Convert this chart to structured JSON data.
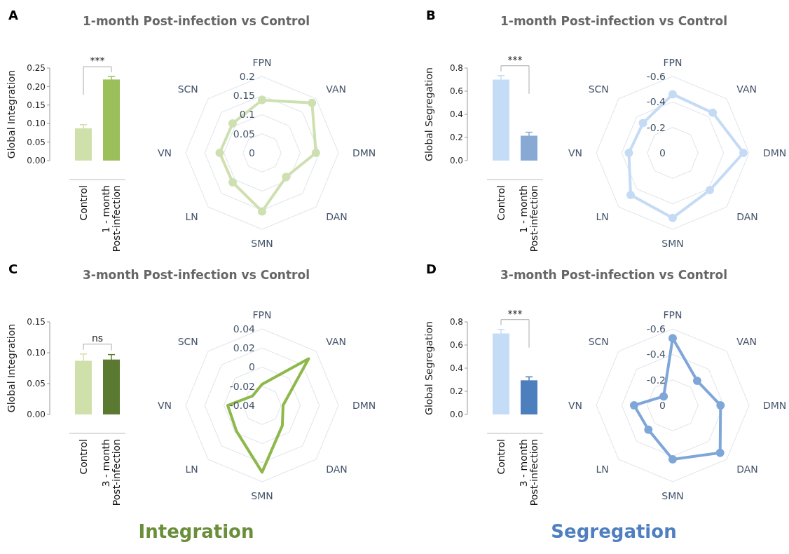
{
  "chart_data": [
    {
      "type": "bar",
      "title": "1-month Post-infection vs Control",
      "ylabel": "Global Integration",
      "categories": [
        "Control",
        "1 - month Post-infection"
      ],
      "values": [
        0.087,
        0.219
      ],
      "colors": [
        "#cfe0aa",
        "#9bbf5a"
      ],
      "errors": [
        0.01,
        0.008
      ],
      "ylim": [
        0,
        0.25
      ],
      "yticks": [
        {
          "value": 0,
          "label": "0.00"
        },
        {
          "value": 0.05,
          "label": "0.05"
        },
        {
          "value": 0.1,
          "label": "0.10"
        },
        {
          "value": 0.15,
          "label": "0.15"
        },
        {
          "value": 0.2,
          "label": "0.20"
        },
        {
          "value": 0.25,
          "label": "0.25"
        }
      ],
      "annotations": [
        "***",
        "A"
      ]
    },
    {
      "type": "radar",
      "categories": [
        "FPN",
        "VAN",
        "DMN",
        "DAN",
        "SMN",
        "LN",
        "VN",
        "SCN"
      ],
      "series": [
        {
          "color": "#cfe0b0",
          "values": [
            0.138,
            0.185,
            0.141,
            0.089,
            0.153,
            0.109,
            0.111,
            0.109
          ]
        }
      ],
      "ylim": [
        0,
        0.2
      ],
      "yticks": [
        0,
        0.05,
        0.1,
        0.15,
        0.2
      ],
      "marker": "circle",
      "grid": true
    },
    {
      "type": "bar",
      "title": "1-month Post-infection vs Control",
      "ylabel": "Global Segregation",
      "categories": [
        "Control",
        "1 - month Post-infection"
      ],
      "values": [
        0.7,
        0.215
      ],
      "colors": [
        "#c5dcf7",
        "#88a9d4"
      ],
      "errors": [
        0.035,
        0.03
      ],
      "ylim": [
        0,
        0.8
      ],
      "yticks": [
        {
          "value": 0,
          "label": "0.0"
        },
        {
          "value": 0.2,
          "label": "0.2"
        },
        {
          "value": 0.4,
          "label": "0.4"
        },
        {
          "value": 0.6,
          "label": "0.6"
        },
        {
          "value": 0.8,
          "label": "0.8"
        }
      ],
      "annotations": [
        "***",
        "B"
      ]
    },
    {
      "type": "radar",
      "categories": [
        "FPN",
        "VAN",
        "DMN",
        "DAN",
        "SMN",
        "LN",
        "VN",
        "SCN"
      ],
      "series": [
        {
          "color": "#c5dbf5",
          "values": [
            -0.46,
            -0.445,
            -0.556,
            -0.413,
            -0.51,
            -0.467,
            -0.344,
            -0.33
          ]
        }
      ],
      "ylim": [
        0,
        -0.6
      ],
      "yticks": [
        0,
        -0.2,
        -0.4,
        -0.6
      ],
      "marker": "circle",
      "grid": true
    },
    {
      "type": "bar",
      "title": "3-month Post-infection vs Control",
      "ylabel": "Global Integration",
      "categories": [
        "Control",
        "3 - month Post-infection"
      ],
      "values": [
        0.087,
        0.089
      ],
      "colors": [
        "#cfe0aa",
        "#5a7a32"
      ],
      "errors": [
        0.011,
        0.008
      ],
      "ylim": [
        0,
        0.15
      ],
      "yticks": [
        {
          "value": 0,
          "label": "0.00"
        },
        {
          "value": 0.05,
          "label": "0.05"
        },
        {
          "value": 0.1,
          "label": "0.10"
        },
        {
          "value": 0.15,
          "label": "0.15"
        }
      ],
      "annotations": [
        "ns",
        "C",
        "Integration"
      ]
    },
    {
      "type": "radar",
      "categories": [
        "FPN",
        "VAN",
        "DMN",
        "DAN",
        "SMN",
        "LN",
        "VN",
        "SCN"
      ],
      "series": [
        {
          "color": "#8db84a",
          "values": [
            -0.018,
            0.029,
            -0.018,
            -0.01,
            0.03,
            -0.002,
            -0.004,
            -0.026
          ]
        }
      ],
      "ylim": [
        -0.04,
        0.04
      ],
      "yticks": [
        -0.04,
        -0.02,
        0,
        0.02,
        0.04
      ],
      "marker": "none",
      "grid": true
    },
    {
      "type": "bar",
      "title": "3-month Post-infection vs Control",
      "ylabel": "Global Segregation",
      "categories": [
        "Control",
        "3 - month Post-infection"
      ],
      "values": [
        0.7,
        0.295
      ],
      "colors": [
        "#c5dcf7",
        "#4d7fbf"
      ],
      "errors": [
        0.035,
        0.03
      ],
      "ylim": [
        0,
        0.8
      ],
      "yticks": [
        {
          "value": 0,
          "label": "0.0"
        },
        {
          "value": 0.2,
          "label": "0.2"
        },
        {
          "value": 0.4,
          "label": "0.4"
        },
        {
          "value": 0.6,
          "label": "0.6"
        },
        {
          "value": 0.8,
          "label": "0.8"
        }
      ],
      "annotations": [
        "***",
        "D",
        "Segregation"
      ]
    },
    {
      "type": "radar",
      "categories": [
        "FPN",
        "VAN",
        "DMN",
        "DAN",
        "SMN",
        "LN",
        "VN",
        "SCN"
      ],
      "series": [
        {
          "color": "#7ea6d8",
          "values": [
            -0.527,
            -0.272,
            -0.376,
            -0.527,
            -0.424,
            -0.27,
            -0.303,
            -0.1
          ]
        }
      ],
      "ylim": [
        0,
        -0.6
      ],
      "yticks": [
        0,
        -0.2,
        -0.4,
        -0.6
      ],
      "marker": "circle",
      "grid": true
    }
  ]
}
